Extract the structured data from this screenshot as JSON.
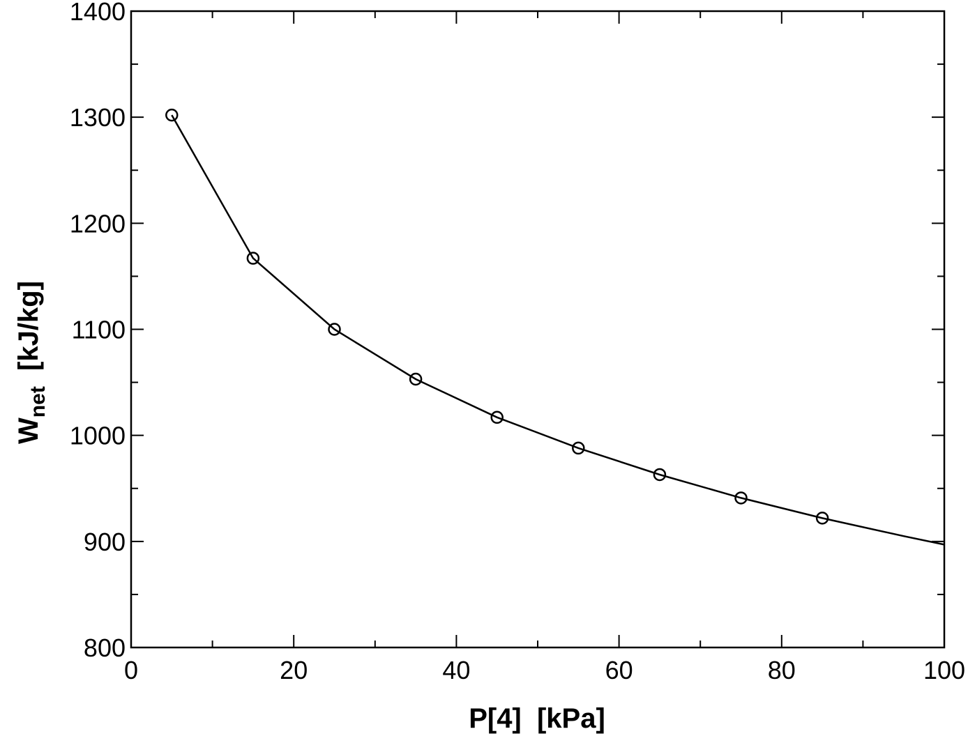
{
  "chart_data": {
    "type": "line",
    "xlabel": "P[4]  [kPa]",
    "ylabel": {
      "main": "W",
      "subscript": "net",
      "unit": "  [kJ/kg]"
    },
    "xlim": [
      0,
      100
    ],
    "ylim": [
      800,
      1400
    ],
    "x_major_ticks": [
      0,
      20,
      40,
      60,
      80,
      100
    ],
    "x_minor_step": 10,
    "y_major_ticks": [
      800,
      900,
      1000,
      1100,
      1200,
      1300,
      1400
    ],
    "y_minor_step": 50,
    "grid": false,
    "line_color": "#000000",
    "marker": "open-circle",
    "series": [
      {
        "line": {
          "x": [
            5,
            15,
            25,
            35,
            45,
            55,
            65,
            75,
            85,
            95,
            100
          ],
          "y": [
            1302,
            1167,
            1100,
            1053,
            1017,
            988,
            963,
            941,
            922,
            905,
            897
          ]
        },
        "markers": {
          "x": [
            5,
            15,
            25,
            35,
            45,
            55,
            65,
            75,
            85
          ],
          "y": [
            1302,
            1167,
            1100,
            1053,
            1017,
            988,
            963,
            941,
            922
          ]
        }
      }
    ]
  }
}
